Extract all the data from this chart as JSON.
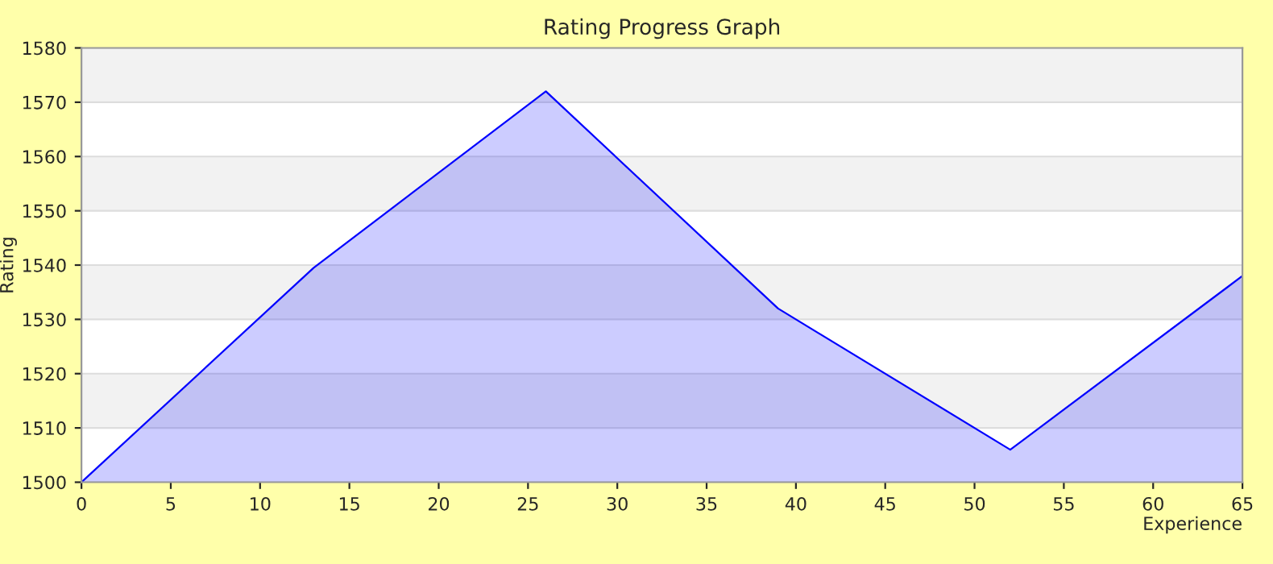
{
  "chart_data": {
    "type": "area",
    "title": "Rating Progress Graph",
    "xlabel": "Experience",
    "ylabel": "Rating",
    "x": [
      0,
      13,
      26,
      39,
      52,
      65
    ],
    "series": [
      {
        "color": "#0000ff",
        "values": [
          1500,
          1539.5,
          1572,
          1532,
          1506,
          1538
        ]
      }
    ],
    "xlim": [
      0,
      65
    ],
    "xticks": [
      0,
      5,
      10,
      15,
      20,
      25,
      30,
      35,
      40,
      45,
      50,
      55,
      60,
      65
    ],
    "ylim": [
      1500,
      1580
    ],
    "yticks": [
      1500,
      1510,
      1520,
      1530,
      1540,
      1550,
      1560,
      1570,
      1580
    ],
    "grid": "y",
    "legend": false
  }
}
